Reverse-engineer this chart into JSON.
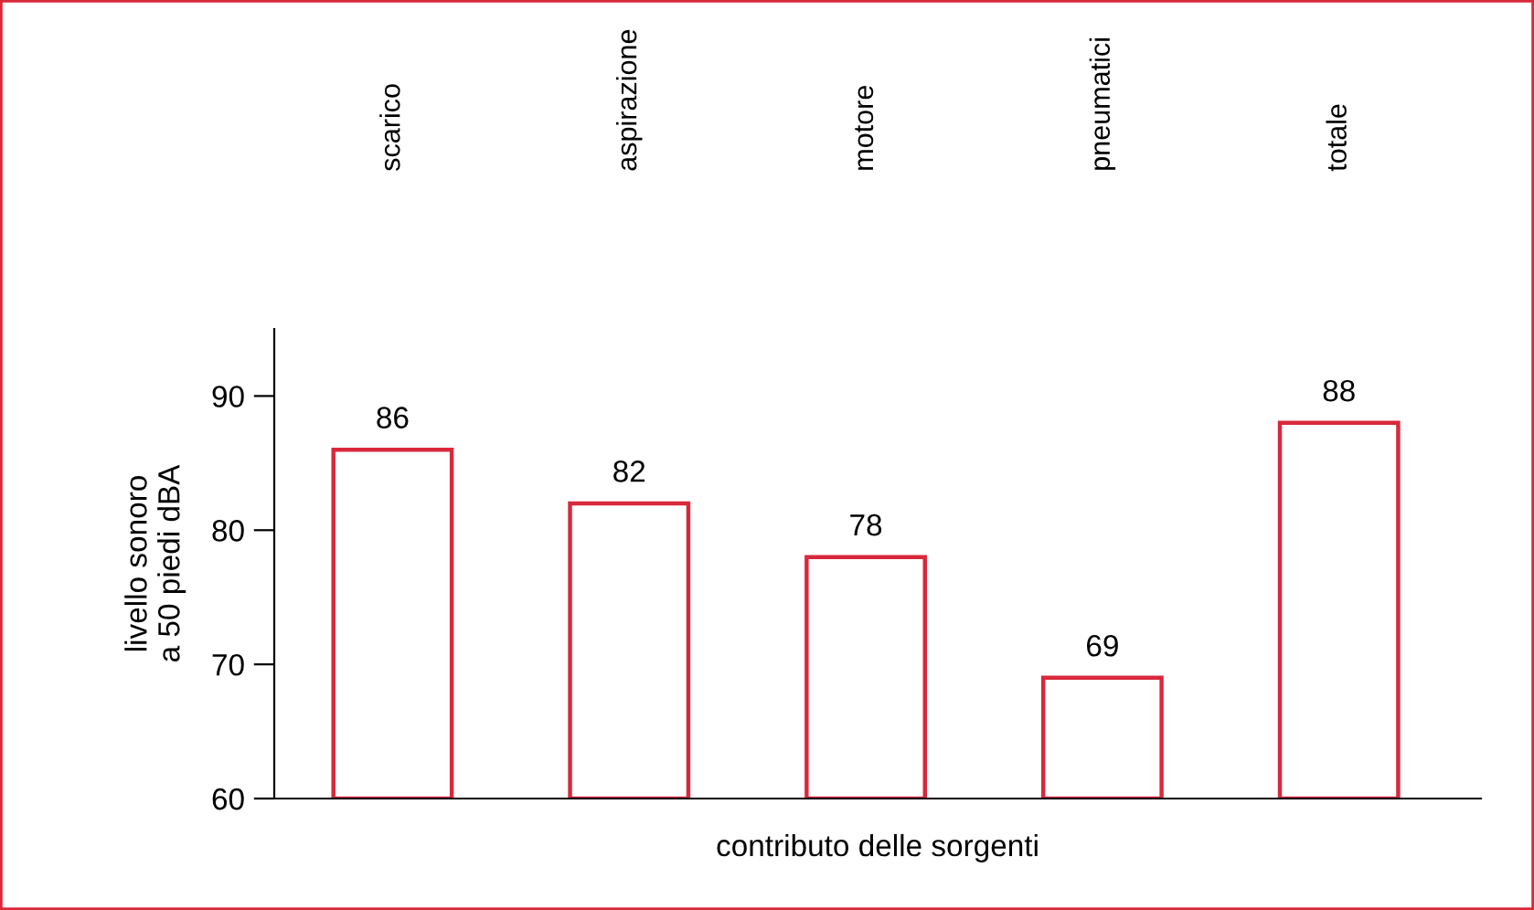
{
  "chart_data": {
    "type": "bar",
    "xlabel": "contributo delle sorgenti",
    "ylabel": "livello sonoro\na 50 piedi dBA",
    "categories": [
      "scarico",
      "aspirazione",
      "motore",
      "pneumatici",
      "totale"
    ],
    "values": [
      86,
      82,
      78,
      69,
      88
    ],
    "color": "#d9283c",
    "ylim": [
      60,
      95
    ],
    "yticks": [
      60,
      70,
      80,
      90
    ],
    "data_labels": true,
    "grid": false,
    "legend": false
  }
}
